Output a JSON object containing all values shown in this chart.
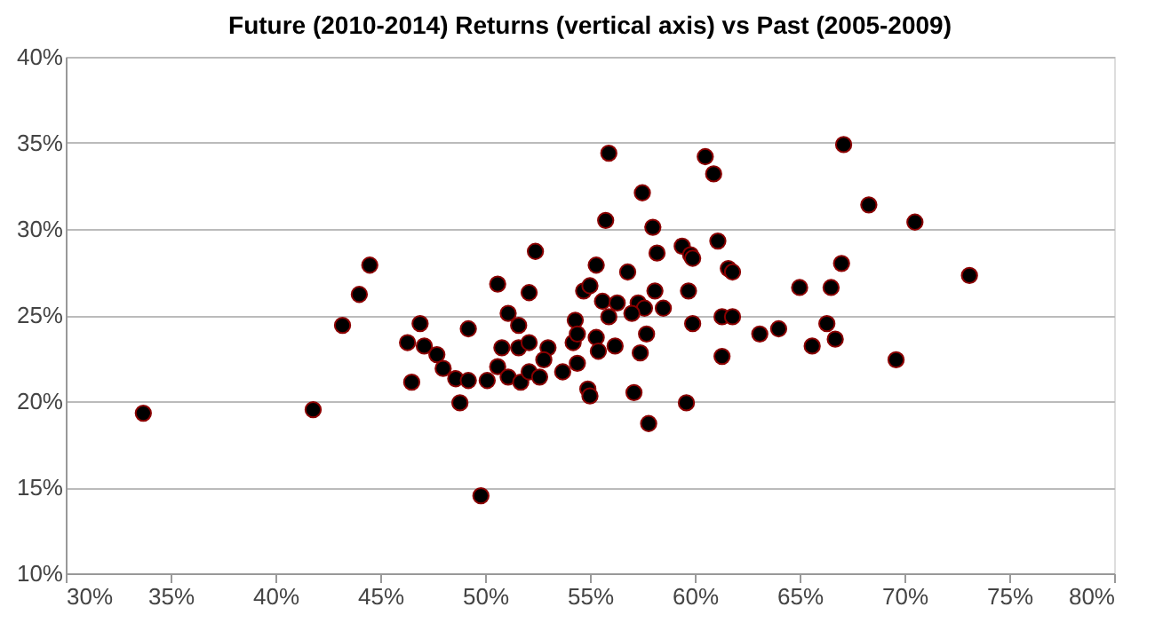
{
  "chart_data": {
    "type": "scatter",
    "title": "Future (2010-2014) Returns (vertical axis) vs Past (2005-2009)",
    "x": [
      33.7,
      41.8,
      43.2,
      44.0,
      44.5,
      55.9,
      55.75,
      52.4,
      50.6,
      52.1,
      55.3,
      56.8,
      54.7,
      55.0,
      46.9,
      49.2,
      46.3,
      47.1,
      47.7,
      48.0,
      46.5,
      48.6,
      49.2,
      48.8,
      49.8,
      50.1,
      51.1,
      51.6,
      50.8,
      51.6,
      52.1,
      53.0,
      52.8,
      50.6,
      51.1,
      51.7,
      52.1,
      52.6,
      53.7,
      54.3,
      54.2,
      54.4,
      54.4,
      54.9,
      55.0,
      55.3,
      55.4,
      55.6,
      55.9,
      56.2,
      56.3,
      60.5,
      60.9,
      57.5,
      58.0,
      61.1,
      59.4,
      58.2,
      59.8,
      59.9,
      61.6,
      61.8,
      58.1,
      59.7,
      57.3,
      57.6,
      58.5,
      57.0,
      59.9,
      61.3,
      61.8,
      63.1,
      64.0,
      65.0,
      65.6,
      57.7,
      57.4,
      61.3,
      57.1,
      59.6,
      57.8,
      67.1,
      68.3,
      70.5,
      67.0,
      66.5,
      73.1,
      66.3,
      66.7,
      69.6
    ],
    "series": [
      {
        "color": "#000000",
        "values": [
          19.3,
          19.5,
          24.4,
          26.2,
          27.9,
          34.4,
          30.5,
          28.7,
          26.8,
          26.3,
          27.9,
          27.5,
          26.4,
          26.7,
          24.5,
          24.2,
          23.4,
          23.2,
          22.7,
          21.9,
          21.1,
          21.3,
          21.2,
          19.9,
          14.5,
          21.2,
          25.1,
          24.4,
          23.1,
          23.1,
          23.4,
          23.1,
          22.4,
          22.0,
          21.4,
          21.1,
          21.7,
          21.4,
          21.7,
          24.7,
          23.4,
          23.9,
          22.2,
          20.7,
          20.3,
          23.7,
          22.9,
          25.8,
          24.9,
          23.2,
          25.7,
          34.2,
          33.2,
          32.1,
          30.1,
          29.3,
          29.0,
          28.6,
          28.5,
          28.3,
          27.7,
          27.5,
          26.4,
          26.4,
          25.7,
          25.4,
          25.4,
          25.1,
          24.5,
          24.9,
          24.9,
          23.9,
          24.2,
          26.6,
          23.2,
          23.9,
          22.8,
          22.6,
          20.5,
          19.9,
          18.7,
          34.9,
          31.4,
          30.4,
          28.0,
          26.6,
          27.3,
          24.5,
          23.6,
          22.4
        ]
      }
    ],
    "xlim": [
      30,
      80
    ],
    "xticks": [
      {
        "value": 30,
        "label": "30%"
      },
      {
        "value": 35,
        "label": "35%"
      },
      {
        "value": 40,
        "label": "40%"
      },
      {
        "value": 45,
        "label": "45%"
      },
      {
        "value": 50,
        "label": "50%"
      },
      {
        "value": 55,
        "label": "55%"
      },
      {
        "value": 60,
        "label": "60%"
      },
      {
        "value": 65,
        "label": "65%"
      },
      {
        "value": 70,
        "label": "70%"
      },
      {
        "value": 75,
        "label": "75%"
      },
      {
        "value": 80,
        "label": "80%"
      }
    ],
    "ylim": [
      10,
      40
    ],
    "yticks": [
      {
        "value": 10,
        "label": "10%"
      },
      {
        "value": 15,
        "label": "15%"
      },
      {
        "value": 20,
        "label": "20%"
      },
      {
        "value": 25,
        "label": "25%"
      },
      {
        "value": 30,
        "label": "30%"
      },
      {
        "value": 35,
        "label": "35%"
      },
      {
        "value": 40,
        "label": "40%"
      }
    ],
    "grid": "y",
    "marker": "circle",
    "legend": false
  }
}
